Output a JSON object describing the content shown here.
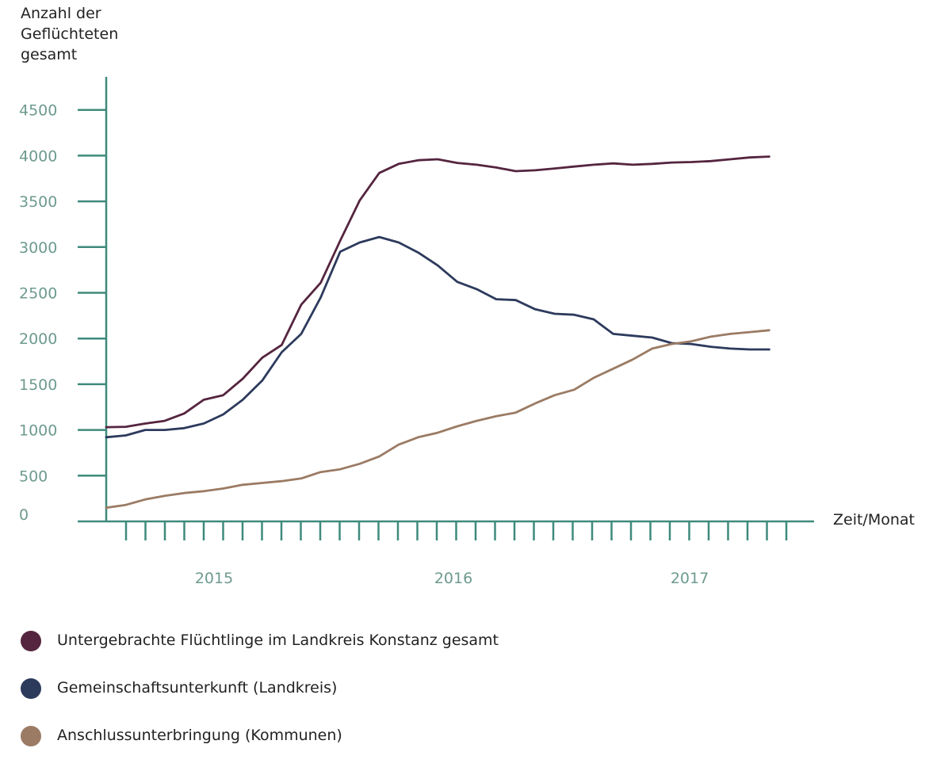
{
  "chart_data": {
    "type": "line",
    "ylabel": [
      "Anzahl der",
      "Geflüchteten",
      "gesamt"
    ],
    "xlabel": "Zeit/Monat",
    "ylim": [
      0,
      4500
    ],
    "yticks": [
      0,
      500,
      1000,
      1500,
      2000,
      2500,
      3000,
      3500,
      4000,
      4500
    ],
    "year_labels": [
      "2015",
      "2016",
      "2017"
    ],
    "colors": {
      "axis": "#3f8a7c",
      "tick_label": "#6d9a8f",
      "text": "#222222"
    },
    "series": [
      {
        "name": "Untergebrachte Flüchtlinge im Landkreis Konstanz gesamt",
        "color": "#55253f",
        "values": [
          1030,
          1035,
          1070,
          1100,
          1180,
          1330,
          1380,
          1560,
          1790,
          1930,
          2370,
          2610,
          3070,
          3510,
          3810,
          3910,
          3950,
          3960,
          3920,
          3900,
          3870,
          3830,
          3840,
          3860,
          3880,
          3900,
          3915,
          3900,
          3910,
          3925,
          3930,
          3940,
          3960,
          3980,
          3990
        ]
      },
      {
        "name": "Gemeinschaftsunterkunft (Landkreis)",
        "color": "#2c3a5c",
        "values": [
          920,
          940,
          1000,
          1000,
          1020,
          1070,
          1170,
          1330,
          1540,
          1850,
          2050,
          2450,
          2950,
          3050,
          3110,
          3050,
          2940,
          2800,
          2620,
          2540,
          2430,
          2420,
          2320,
          2270,
          2260,
          2210,
          2050,
          2030,
          2010,
          1950,
          1940,
          1910,
          1890,
          1880,
          1880
        ]
      },
      {
        "name": "Anschlussunterbringung (Kommunen)",
        "color": "#9b7b64",
        "values": [
          150,
          180,
          240,
          280,
          310,
          330,
          360,
          400,
          420,
          440,
          470,
          540,
          570,
          630,
          710,
          840,
          920,
          970,
          1040,
          1100,
          1150,
          1190,
          1290,
          1380,
          1440,
          1570,
          1670,
          1770,
          1890,
          1940,
          1970,
          2020,
          2050,
          2070,
          2090
        ]
      }
    ]
  }
}
